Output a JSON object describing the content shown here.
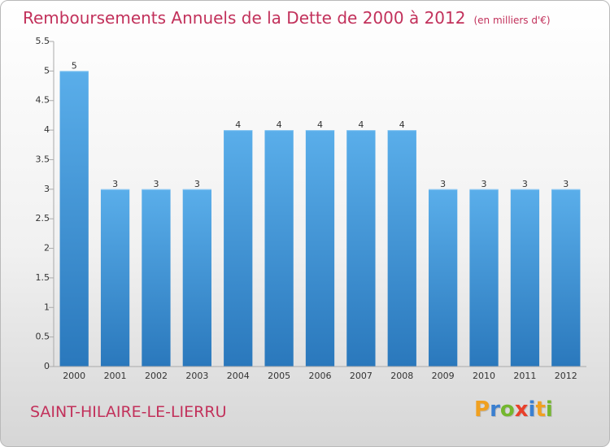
{
  "title": "Remboursements Annuels de la Dette de 2000 à 2012",
  "unit": "(en milliers d'€)",
  "commune": "SAINT-HILAIRE-LE-LIERRU",
  "logo": {
    "letters": [
      "P",
      "r",
      "o",
      "x",
      "i",
      "t",
      "i"
    ],
    "colors": [
      "#f0a020",
      "#3a7fd0",
      "#74b72e",
      "#e8402a",
      "#3a7fd0",
      "#f0a020",
      "#74b72e"
    ]
  },
  "colors": {
    "title": "#c2315b",
    "bar_top": "#5aaeea",
    "bar_bottom": "#2a78bc"
  },
  "chart_data": {
    "type": "bar",
    "categories": [
      "2000",
      "2001",
      "2002",
      "2003",
      "2004",
      "2005",
      "2006",
      "2007",
      "2008",
      "2009",
      "2010",
      "2011",
      "2012"
    ],
    "values": [
      5,
      3,
      3,
      3,
      4,
      4,
      4,
      4,
      4,
      3,
      3,
      3,
      3
    ],
    "data_labels": [
      "5",
      "3",
      "3",
      "3",
      "4",
      "4",
      "4",
      "4",
      "4",
      "3",
      "3",
      "3",
      "3"
    ],
    "yticks": [
      "0",
      "0.5",
      "1",
      "1.5",
      "2",
      "2.5",
      "3",
      "3.5",
      "4",
      "4.5",
      "5",
      "5.5"
    ],
    "ylim": [
      0,
      5.5
    ],
    "grid": false
  }
}
